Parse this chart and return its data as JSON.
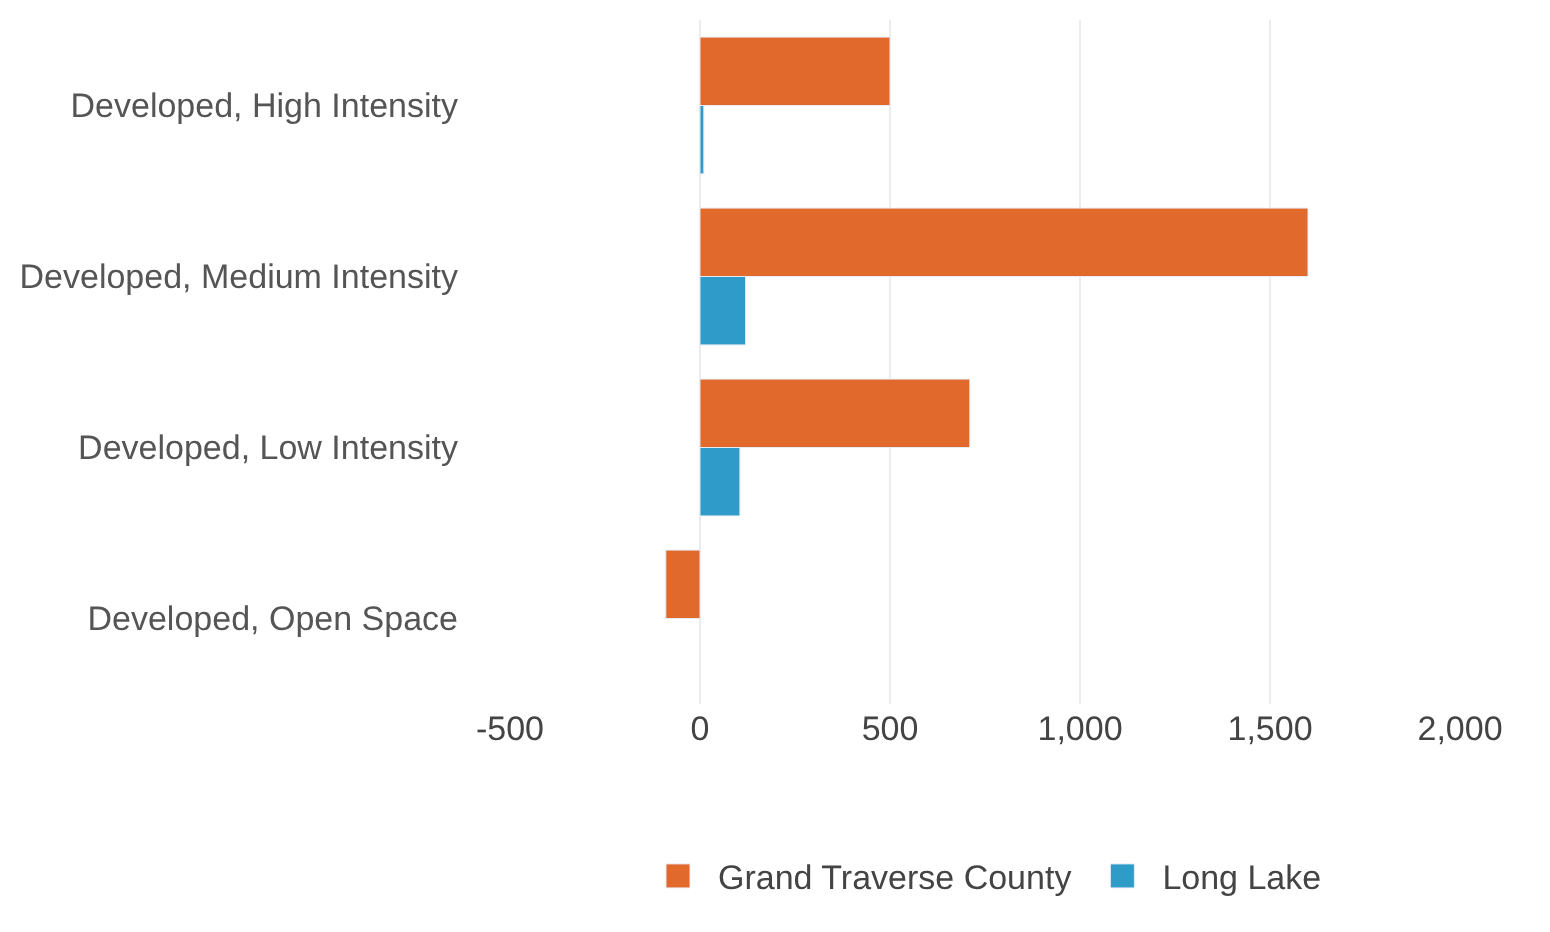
{
  "chart_data": {
    "type": "bar",
    "orientation": "horizontal",
    "categories": [
      "Developed, High Intensity",
      "Developed, Medium Intensity",
      "Developed, Low Intensity",
      "Developed, Open Space"
    ],
    "series": [
      {
        "name": "Grand Traverse County",
        "color": "#e2692c",
        "values": [
          500,
          1600,
          710,
          -90
        ]
      },
      {
        "name": "Long Lake",
        "color": "#2f9bc9",
        "values": [
          10,
          120,
          105,
          null
        ]
      }
    ],
    "xlim": [
      -500,
      2000
    ],
    "xticks": [
      -500,
      0,
      500,
      {
        "value": 1000,
        "label": "1,000"
      },
      {
        "value": 1500,
        "label": "1,500"
      },
      {
        "value": 2000,
        "label": "2,000"
      }
    ],
    "grid": "x",
    "legend": "bottom"
  }
}
